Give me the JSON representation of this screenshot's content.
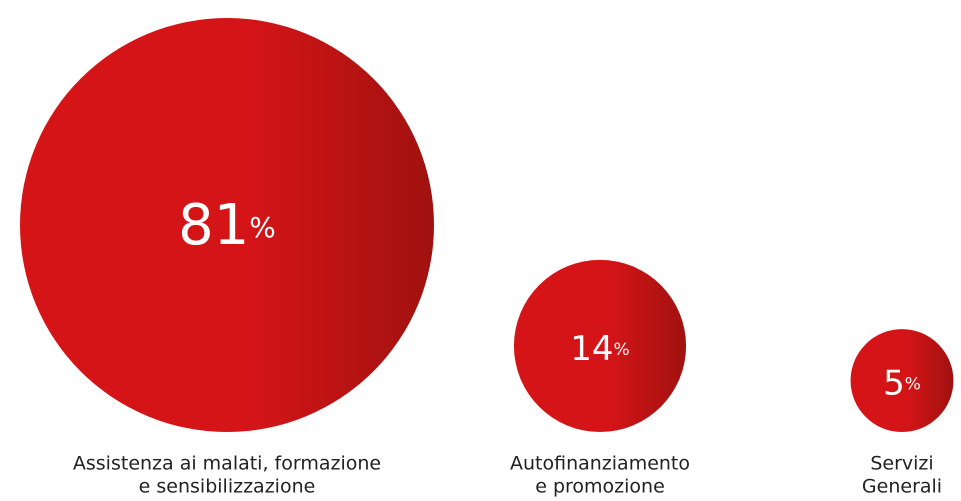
{
  "chart_data": {
    "type": "bubble",
    "categories": [
      [
        "Assistenza ai malati, formazione",
        "e sensibilizzazione"
      ],
      [
        "Autofinanziamento",
        "e promozione"
      ],
      [
        "Servizi",
        "Generali"
      ]
    ],
    "values": [
      81,
      14,
      5
    ],
    "unit": "%",
    "color": "#d51418"
  }
}
